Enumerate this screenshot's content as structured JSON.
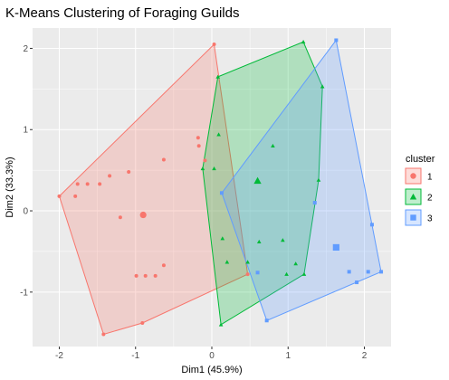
{
  "chart_data": {
    "type": "scatter",
    "title": "K-Means Clustering of Foraging Guilds",
    "xlabel": "Dim1 (45.9%)",
    "ylabel": "Dim2 (33.3%)",
    "xlim": [
      -2.35,
      2.35
    ],
    "ylim": [
      -1.67,
      2.25
    ],
    "x_ticks": [
      -2,
      -1,
      0,
      1,
      2
    ],
    "x_tick_labels": [
      "-2",
      "-1",
      "0",
      "1",
      "2"
    ],
    "y_ticks": [
      -1,
      0,
      1,
      2
    ],
    "y_tick_labels": [
      "-1",
      "0",
      "1",
      "2"
    ],
    "grid": true,
    "background": "#ebebeb",
    "legend": {
      "title": "cluster",
      "position": "right",
      "entries": [
        "1",
        "2",
        "3"
      ]
    },
    "series": [
      {
        "name": "1",
        "shape": "circle",
        "color": "#f8766d",
        "points": [
          [
            -2.0,
            0.18
          ],
          [
            -1.79,
            0.18
          ],
          [
            -1.76,
            0.33
          ],
          [
            -1.63,
            0.33
          ],
          [
            -1.47,
            0.33
          ],
          [
            -1.34,
            0.43
          ],
          [
            -1.09,
            0.48
          ],
          [
            -1.2,
            -0.08
          ],
          [
            -0.99,
            -0.8
          ],
          [
            -0.87,
            -0.8
          ],
          [
            -0.74,
            -0.8
          ],
          [
            -0.63,
            -0.67
          ],
          [
            -0.63,
            0.63
          ],
          [
            -0.18,
            0.9
          ],
          [
            -0.17,
            0.8
          ],
          [
            -0.09,
            0.62
          ],
          [
            0.03,
            2.05
          ],
          [
            0.47,
            -0.78
          ],
          [
            -0.91,
            -1.38
          ],
          [
            -1.42,
            -1.52
          ]
        ],
        "centroid": [
          -0.9,
          -0.05
        ],
        "hull": [
          [
            -2.0,
            0.18
          ],
          [
            0.03,
            2.05
          ],
          [
            0.47,
            -0.78
          ],
          [
            -0.91,
            -1.38
          ],
          [
            -1.42,
            -1.52
          ]
        ]
      },
      {
        "name": "2",
        "shape": "triangle",
        "color": "#00ba38",
        "points": [
          [
            -0.12,
            0.52
          ],
          [
            0.08,
            1.65
          ],
          [
            0.09,
            0.94
          ],
          [
            0.03,
            0.52
          ],
          [
            1.2,
            2.08
          ],
          [
            1.45,
            1.53
          ],
          [
            1.4,
            0.38
          ],
          [
            0.8,
            0.8
          ],
          [
            0.62,
            -0.38
          ],
          [
            0.93,
            -0.36
          ],
          [
            1.1,
            -0.65
          ],
          [
            1.21,
            -0.78
          ],
          [
            0.98,
            -0.78
          ],
          [
            0.14,
            -0.34
          ],
          [
            0.2,
            -0.63
          ],
          [
            0.47,
            -0.63
          ],
          [
            0.12,
            -1.4
          ]
        ],
        "centroid": [
          0.6,
          0.37
        ],
        "hull": [
          [
            -0.12,
            0.52
          ],
          [
            0.08,
            1.65
          ],
          [
            1.2,
            2.08
          ],
          [
            1.45,
            1.53
          ],
          [
            1.4,
            0.38
          ],
          [
            1.21,
            -0.78
          ],
          [
            0.12,
            -1.4
          ]
        ]
      },
      {
        "name": "3",
        "shape": "square",
        "color": "#619cff",
        "points": [
          [
            1.63,
            2.1
          ],
          [
            0.13,
            0.22
          ],
          [
            1.35,
            0.1
          ],
          [
            2.1,
            -0.17
          ],
          [
            2.22,
            -0.75
          ],
          [
            2.05,
            -0.75
          ],
          [
            1.8,
            -0.75
          ],
          [
            1.9,
            -0.88
          ],
          [
            0.6,
            -0.76
          ],
          [
            0.72,
            -1.35
          ]
        ],
        "centroid": [
          1.63,
          -0.45
        ],
        "hull": [
          [
            1.63,
            2.1
          ],
          [
            2.1,
            -0.17
          ],
          [
            2.22,
            -0.75
          ],
          [
            0.72,
            -1.35
          ],
          [
            0.13,
            0.22
          ]
        ]
      }
    ]
  }
}
